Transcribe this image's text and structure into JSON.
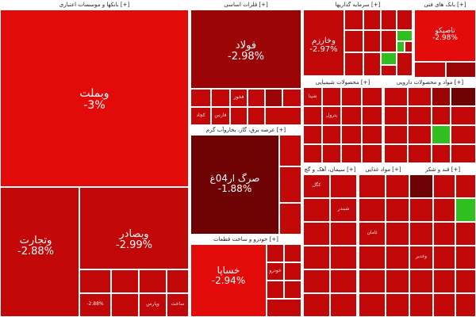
{
  "sectors": {
    "banks": "بانکها و موسسات اعتباری [+]",
    "basic_metals": "فلزات اساسی [+]",
    "investment": "سرمایه گذاریها [+]",
    "chemicals": "محصولات شیمیایی [+]",
    "pharma": "مواد و محصولات دارویی [+]",
    "auto": "خودرو و ساخت قطعات [+]",
    "electric": "عرضه برق، گاز، بخاروآب گرم [+]",
    "cement": "سیمان، آهک و گچ [+]",
    "food": "مواد غذایی [+]",
    "multi": "بانک های فنی [+]",
    "sugar": "قند و شکر [+]"
  },
  "tiles": {
    "vbmellat": {
      "name": "وبملت",
      "change": "-3%"
    },
    "vtejarat": {
      "name": "وتجارت",
      "change": "-2.88%"
    },
    "vbsader": {
      "name": "وبصادر",
      "change": "-2.99%"
    },
    "foolad": {
      "name": "فولاد",
      "change": "-2.98%"
    },
    "vkharazm": {
      "name": "وخارزم",
      "change": "-2.97%"
    },
    "taproco": {
      "name": "تاصیکو",
      "change": "-2.98%"
    },
    "sarg": {
      "name": "صرگ ار04غ",
      "change": "-1.88%"
    },
    "khsapa": {
      "name": "خساپا",
      "change": "-2.94%"
    }
  },
  "small_labels": {
    "a": "وپارس",
    "b": "وپست",
    "c": "ساخت",
    "d": "-2.88%",
    "e": "کچاد",
    "f": "فخوز",
    "g": "فارس",
    "h": "شپنا",
    "i": "پترول",
    "j": "کگل",
    "k": "شبندر",
    "l": "خودرو",
    "m": "ثامان",
    "n": "وغدیر"
  }
}
